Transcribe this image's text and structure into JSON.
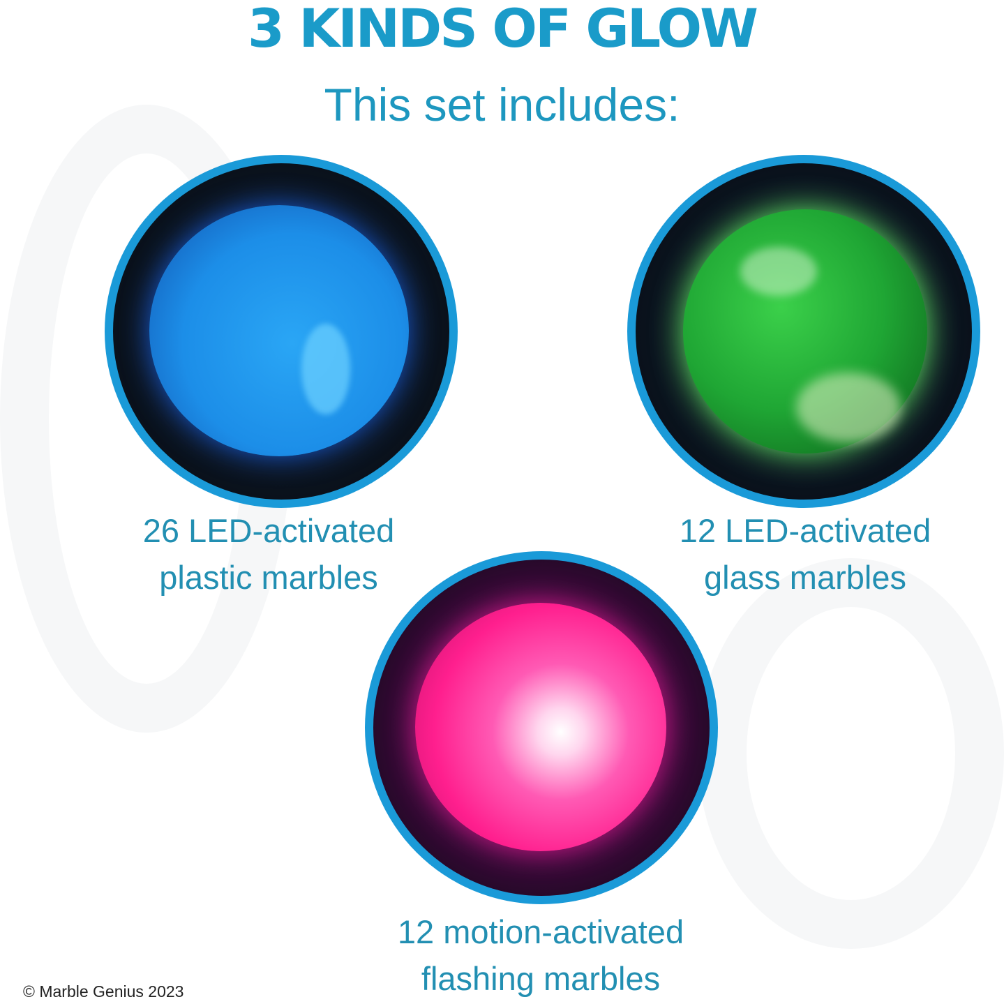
{
  "header": {
    "title": "3 KINDS OF GLOW",
    "subtitle": "This set includes:"
  },
  "items": [
    {
      "line1": "26 LED-activated",
      "line2": "plastic marbles",
      "color": "#1e90e8"
    },
    {
      "line1": "12 LED-activated",
      "line2": "glass marbles",
      "color": "#22b43a"
    },
    {
      "line1": "12 motion-activated",
      "line2": "flashing marbles",
      "color": "#ff1f8e"
    }
  ],
  "footer": {
    "copyright": "© Marble Genius 2023"
  },
  "colors": {
    "ring": "#1a9ad8",
    "title": "#1a9bc9",
    "text": "#228fb2"
  }
}
